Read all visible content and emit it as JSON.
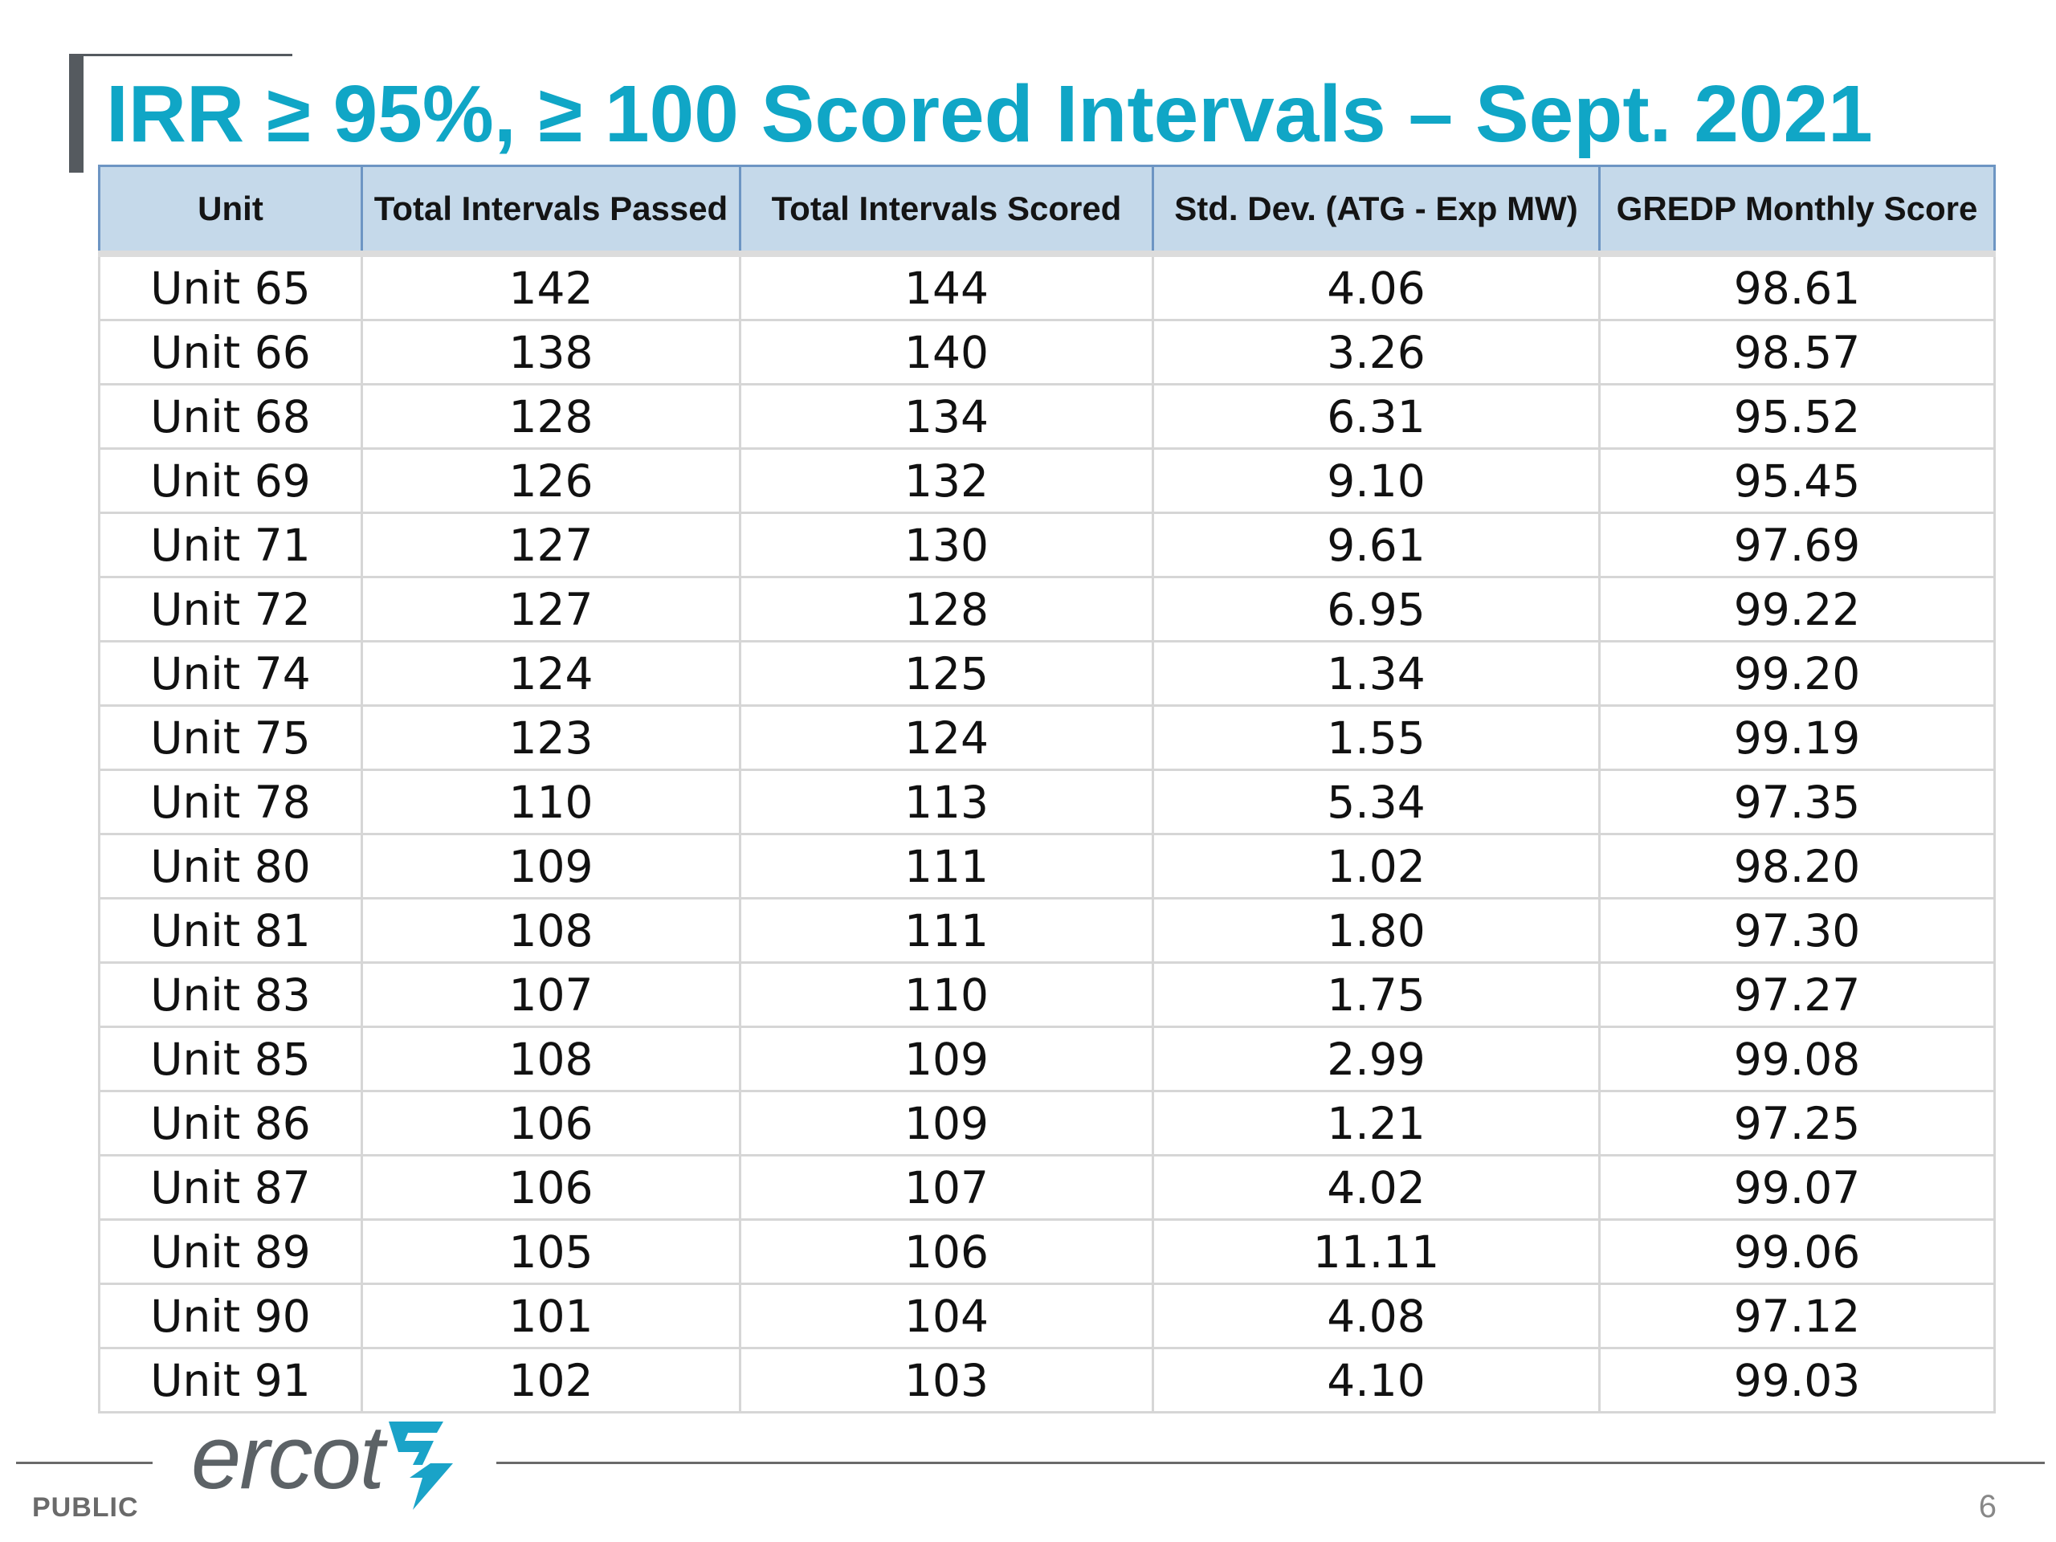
{
  "title": "IRR ≥ 95%, ≥ 100 Scored Intervals – Sept. 2021",
  "table": {
    "headers": [
      "Unit",
      "Total Intervals Passed",
      "Total Intervals Scored",
      "Std. Dev. (ATG - Exp MW)",
      "GREDP Monthly Score"
    ],
    "rows": [
      [
        "Unit 65",
        "142",
        "144",
        "4.06",
        "98.61"
      ],
      [
        "Unit 66",
        "138",
        "140",
        "3.26",
        "98.57"
      ],
      [
        "Unit 68",
        "128",
        "134",
        "6.31",
        "95.52"
      ],
      [
        "Unit 69",
        "126",
        "132",
        "9.10",
        "95.45"
      ],
      [
        "Unit 71",
        "127",
        "130",
        "9.61",
        "97.69"
      ],
      [
        "Unit 72",
        "127",
        "128",
        "6.95",
        "99.22"
      ],
      [
        "Unit 74",
        "124",
        "125",
        "1.34",
        "99.20"
      ],
      [
        "Unit 75",
        "123",
        "124",
        "1.55",
        "99.19"
      ],
      [
        "Unit 78",
        "110",
        "113",
        "5.34",
        "97.35"
      ],
      [
        "Unit 80",
        "109",
        "111",
        "1.02",
        "98.20"
      ],
      [
        "Unit 81",
        "108",
        "111",
        "1.80",
        "97.30"
      ],
      [
        "Unit 83",
        "107",
        "110",
        "1.75",
        "97.27"
      ],
      [
        "Unit 85",
        "108",
        "109",
        "2.99",
        "99.08"
      ],
      [
        "Unit 86",
        "106",
        "109",
        "1.21",
        "97.25"
      ],
      [
        "Unit 87",
        "106",
        "107",
        "4.02",
        "99.07"
      ],
      [
        "Unit 89",
        "105",
        "106",
        "11.11",
        "99.06"
      ],
      [
        "Unit 90",
        "101",
        "104",
        "4.08",
        "97.12"
      ],
      [
        "Unit 91",
        "102",
        "103",
        "4.10",
        "99.03"
      ]
    ]
  },
  "footer": {
    "logo_text": "ercot",
    "logo_icon": "ercot-lightning-icon",
    "classification": "PUBLIC",
    "page_number": "6"
  },
  "colors": {
    "title": "#10a6c6",
    "header_fill": "#c5d9ea",
    "header_border": "#6d95c3",
    "grid": "#d6d6d6",
    "logo": "#5c6266",
    "logo_accent": "#1aa3c8"
  }
}
